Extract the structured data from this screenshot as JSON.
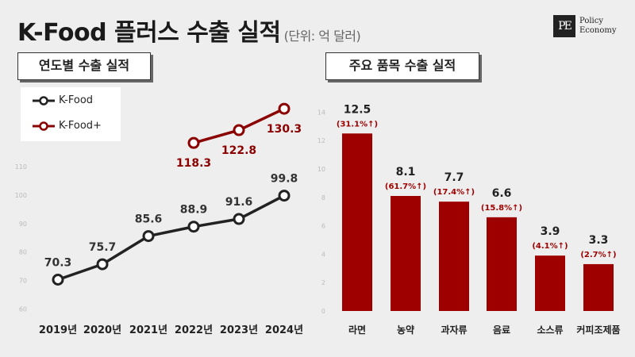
{
  "header": {
    "title": "K-Food 플러스 수출 실적",
    "unit": "(단위: 억 달러)"
  },
  "logo": {
    "mark": "PE",
    "line1": "Policy",
    "line2": "Economy"
  },
  "colors": {
    "kfood": "#222222",
    "kfoodplus": "#8b0000",
    "bar": "#9e0000",
    "change": "#9e0000"
  },
  "left_panel": {
    "label": "연도별 수출 실적"
  },
  "right_panel": {
    "label": "주요 품목 수출 실적"
  },
  "chart_data": [
    {
      "type": "line",
      "x": [
        "2019년",
        "2020년",
        "2021년",
        "2022년",
        "2023년",
        "2024년"
      ],
      "yticks": [
        60,
        70,
        80,
        90,
        100,
        110
      ],
      "ylim": [
        60,
        135
      ],
      "series": [
        {
          "name": "K-Food",
          "values": [
            70.3,
            75.7,
            85.6,
            88.9,
            91.6,
            99.8
          ],
          "labels": [
            "70.3",
            "75.7",
            "85.6",
            "88.9",
            "91.6",
            "99.8"
          ]
        },
        {
          "name": "K-Food+",
          "values": [
            null,
            null,
            null,
            118.3,
            122.8,
            130.3
          ],
          "labels": [
            "",
            "",
            "",
            "118.3",
            "122.8",
            "130.3"
          ]
        }
      ],
      "legend": "top-left",
      "grid": false
    },
    {
      "type": "bar",
      "categories": [
        "라면",
        "농약",
        "과자류",
        "음료",
        "소스류",
        "커피조제품"
      ],
      "values": [
        12.5,
        8.1,
        7.7,
        6.6,
        3.9,
        3.3
      ],
      "value_labels": [
        "12.5",
        "8.1",
        "7.7",
        "6.6",
        "3.9",
        "3.3"
      ],
      "changes": [
        "(31.1%↑)",
        "(61.7%↑)",
        "(17.4%↑)",
        "(15.8%↑)",
        "(4.1%↑)",
        "(2.7%↑)"
      ],
      "yticks": [
        0,
        2,
        4,
        6,
        8,
        10,
        12,
        14
      ],
      "ylim": [
        0,
        14
      ],
      "grid": false
    }
  ]
}
